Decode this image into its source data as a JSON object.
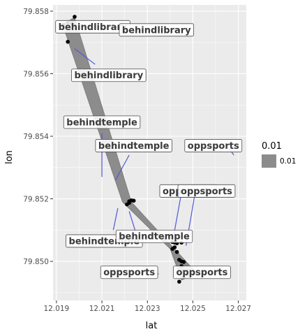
{
  "chart_data": {
    "type": "scatter",
    "title": "",
    "xlabel": "lat",
    "ylabel": "lon",
    "xlim": [
      12.01885,
      12.02735
    ],
    "ylim": [
      79.84875,
      79.8582
    ],
    "x_ticks": [
      12.019,
      12.021,
      12.023,
      12.025,
      12.027
    ],
    "x_tick_labels": [
      "12.019",
      "12.021",
      "12.023",
      "12.025",
      "12.027"
    ],
    "y_ticks": [
      79.85,
      79.852,
      79.854,
      79.856,
      79.858
    ],
    "y_tick_labels": [
      "79.850",
      "79.852",
      "79.854",
      "79.856",
      "79.858"
    ],
    "grid": true,
    "colors": {
      "panel": "#ebebeb",
      "grid": "#ffffff",
      "path": "#8c8c8c",
      "point": "#000000",
      "segment": "#4d58d6"
    },
    "legend": {
      "title": "0.01",
      "entries": [
        "0.01"
      ],
      "placement": "right"
    },
    "path": [
      [
        12.0193,
        79.8576
      ],
      [
        12.0198,
        79.8578
      ],
      [
        12.0223,
        79.8519
      ],
      [
        12.0247,
        79.85
      ],
      [
        12.0252,
        79.8496
      ],
      [
        12.0245,
        79.8494
      ],
      [
        12.024,
        79.8504
      ],
      [
        12.0219,
        79.8519
      ],
      [
        12.0193,
        79.8575
      ]
    ],
    "points": [
      {
        "x": 12.0192,
        "y": 79.85752
      },
      {
        "x": 12.0193,
        "y": 79.85756
      },
      {
        "x": 12.0195,
        "y": 79.85762
      },
      {
        "x": 12.0197,
        "y": 79.8576
      },
      {
        "x": 12.0198,
        "y": 79.85782
      },
      {
        "x": 12.0195,
        "y": 79.85702
      },
      {
        "x": 12.0222,
        "y": 79.85192
      },
      {
        "x": 12.0223,
        "y": 79.85195
      },
      {
        "x": 12.0224,
        "y": 79.85194
      },
      {
        "x": 12.0221,
        "y": 79.85182
      },
      {
        "x": 12.0222,
        "y": 79.85187
      },
      {
        "x": 12.0241,
        "y": 79.85062
      },
      {
        "x": 12.0242,
        "y": 79.8506
      },
      {
        "x": 12.0243,
        "y": 79.85058
      },
      {
        "x": 12.0245,
        "y": 79.8506
      },
      {
        "x": 12.0242,
        "y": 79.85045
      },
      {
        "x": 12.0241,
        "y": 79.8504
      },
      {
        "x": 12.0243,
        "y": 79.8503
      },
      {
        "x": 12.0244,
        "y": 79.85005
      },
      {
        "x": 12.0245,
        "y": 79.85
      },
      {
        "x": 12.0246,
        "y": 79.84998
      },
      {
        "x": 12.0245,
        "y": 79.84985
      },
      {
        "x": 12.0244,
        "y": 79.84935
      }
    ],
    "labels": [
      {
        "text": "behindlibrary",
        "x": 12.0206,
        "y": 79.8575
      },
      {
        "text": "behindlibrary",
        "x": 12.0234,
        "y": 79.8574
      },
      {
        "text": "behindlibrary",
        "x": 12.0213,
        "y": 79.85595
      },
      {
        "text": "behindtemple",
        "x": 12.021,
        "y": 79.85445
      },
      {
        "text": "behindtemple",
        "x": 12.0224,
        "y": 79.8537
      },
      {
        "text": "oppsports",
        "x": 12.0259,
        "y": 79.8537
      },
      {
        "text": "oppsports",
        "x": 12.0248,
        "y": 79.85225
      },
      {
        "text": "oppsports",
        "x": 12.0256,
        "y": 79.85225
      },
      {
        "text": "behindtemple",
        "x": 12.0211,
        "y": 79.85065
      },
      {
        "text": "behindtemple",
        "x": 12.0233,
        "y": 79.8508
      },
      {
        "text": "oppsports",
        "x": 12.0222,
        "y": 79.84965
      },
      {
        "text": "oppsports",
        "x": 12.0254,
        "y": 79.84965
      }
    ],
    "segments": [
      [
        [
          12.0198,
          79.8568
        ],
        [
          12.0207,
          79.8563
        ]
      ],
      [
        [
          12.021,
          79.8541
        ],
        [
          12.021,
          79.8527
        ]
      ],
      [
        [
          12.0216,
          79.8526
        ],
        [
          12.0222,
          79.8534
        ]
      ],
      [
        [
          12.0268,
          79.8534
        ],
        [
          12.0264,
          79.8538
        ]
      ],
      [
        [
          12.0245,
          79.8522
        ],
        [
          12.0241,
          79.8506
        ]
      ],
      [
        [
          12.0251,
          79.8522
        ],
        [
          12.0247,
          79.8505
        ]
      ],
      [
        [
          12.0217,
          79.8517
        ],
        [
          12.0215,
          79.851
        ]
      ],
      [
        [
          12.0222,
          79.8516
        ],
        [
          12.0225,
          79.8509
        ]
      ],
      [
        [
          12.0235,
          79.8496
        ],
        [
          12.0232,
          79.8496
        ]
      ],
      [
        [
          12.0252,
          79.8496
        ],
        [
          12.025,
          79.8496
        ]
      ]
    ]
  }
}
